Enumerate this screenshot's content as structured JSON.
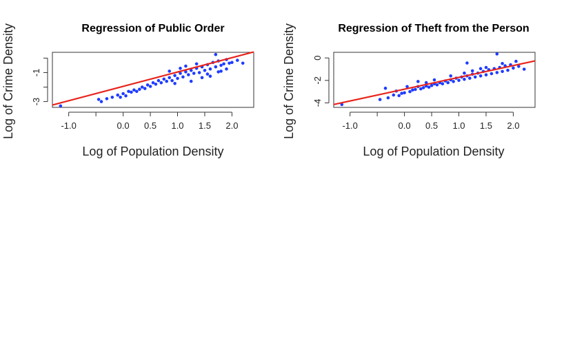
{
  "chart_data": [
    {
      "type": "scatter",
      "title": "Regression of Public Order",
      "xlabel": "Log of Population Density",
      "ylabel": "Log of Crime Density",
      "xlim": [
        -1.3,
        2.4
      ],
      "ylim": [
        -3.4,
        0.4
      ],
      "xticks": [
        -1.0,
        -0.5,
        0.0,
        0.5,
        1.0,
        1.5,
        2.0
      ],
      "xtick_labels": [
        "-1.0",
        "",
        "0.0",
        "0.5",
        "1.0",
        "1.5",
        "2.0"
      ],
      "yticks": [
        -3,
        -2,
        -1,
        0
      ],
      "ytick_labels": [
        "-3",
        "",
        "-1",
        ""
      ],
      "regression": {
        "intercept": -1.95,
        "slope": 0.99
      },
      "points": [
        [
          -1.15,
          -3.3
        ],
        [
          -0.45,
          -2.85
        ],
        [
          -0.4,
          -3.0
        ],
        [
          -0.3,
          -2.8
        ],
        [
          -0.2,
          -2.7
        ],
        [
          -0.1,
          -2.55
        ],
        [
          -0.05,
          -2.7
        ],
        [
          0.0,
          -2.45
        ],
        [
          0.05,
          -2.6
        ],
        [
          0.1,
          -2.3
        ],
        [
          0.15,
          -2.35
        ],
        [
          0.2,
          -2.2
        ],
        [
          0.25,
          -2.3
        ],
        [
          0.3,
          -2.15
        ],
        [
          0.35,
          -2.0
        ],
        [
          0.4,
          -2.1
        ],
        [
          0.45,
          -1.85
        ],
        [
          0.5,
          -1.95
        ],
        [
          0.55,
          -1.7
        ],
        [
          0.6,
          -1.8
        ],
        [
          0.65,
          -1.55
        ],
        [
          0.7,
          -1.7
        ],
        [
          0.75,
          -1.45
        ],
        [
          0.8,
          -1.6
        ],
        [
          0.85,
          -1.35
        ],
        [
          0.9,
          -1.55
        ],
        [
          0.95,
          -1.2
        ],
        [
          1.0,
          -1.4
        ],
        [
          1.05,
          -1.05
        ],
        [
          1.1,
          -1.3
        ],
        [
          1.15,
          -0.95
        ],
        [
          1.2,
          -1.15
        ],
        [
          1.25,
          -0.85
        ],
        [
          1.3,
          -1.05
        ],
        [
          1.35,
          -0.7
        ],
        [
          1.4,
          -1.0
        ],
        [
          1.45,
          -0.6
        ],
        [
          1.5,
          -0.85
        ],
        [
          1.55,
          -0.45
        ],
        [
          1.6,
          -0.75
        ],
        [
          1.65,
          -0.3
        ],
        [
          1.7,
          -0.6
        ],
        [
          1.75,
          -0.2
        ],
        [
          1.8,
          -0.5
        ],
        [
          1.85,
          -0.4
        ],
        [
          1.9,
          -0.1
        ],
        [
          1.95,
          -0.35
        ],
        [
          2.0,
          -0.3
        ],
        [
          2.1,
          -0.15
        ],
        [
          2.2,
          -0.35
        ],
        [
          1.7,
          0.25
        ],
        [
          1.25,
          -1.6
        ],
        [
          1.45,
          -1.35
        ],
        [
          0.95,
          -1.75
        ],
        [
          1.55,
          -1.1
        ],
        [
          1.6,
          -1.25
        ],
        [
          1.8,
          -0.9
        ],
        [
          1.9,
          -0.75
        ],
        [
          1.35,
          -0.4
        ],
        [
          1.15,
          -0.55
        ],
        [
          0.85,
          -0.9
        ],
        [
          1.05,
          -0.7
        ],
        [
          1.75,
          -0.95
        ]
      ]
    },
    {
      "type": "scatter",
      "title": "Regression of Theft from the Person",
      "xlabel": "Log of Population Density",
      "ylabel": "Log of Crime Density",
      "xlim": [
        -1.3,
        2.4
      ],
      "ylim": [
        -4.4,
        0.5
      ],
      "xticks": [
        -1.0,
        -0.5,
        0.0,
        0.5,
        1.0,
        1.5,
        2.0
      ],
      "xtick_labels": [
        "-1.0",
        "",
        "0.0",
        "0.5",
        "1.0",
        "1.5",
        "2.0"
      ],
      "yticks": [
        -4,
        -2,
        0
      ],
      "ytick_labels": [
        "-4",
        "-2",
        "0"
      ],
      "regression": {
        "intercept": -2.78,
        "slope": 1.05
      },
      "points": [
        [
          -1.15,
          -4.15
        ],
        [
          -0.45,
          -3.7
        ],
        [
          -0.35,
          -2.7
        ],
        [
          -0.3,
          -3.55
        ],
        [
          -0.2,
          -3.3
        ],
        [
          -0.1,
          -3.35
        ],
        [
          -0.05,
          -3.15
        ],
        [
          0.0,
          -3.1
        ],
        [
          0.05,
          -2.55
        ],
        [
          0.1,
          -3.0
        ],
        [
          0.15,
          -2.85
        ],
        [
          0.2,
          -2.8
        ],
        [
          0.25,
          -2.55
        ],
        [
          0.3,
          -2.75
        ],
        [
          0.35,
          -2.65
        ],
        [
          0.4,
          -2.5
        ],
        [
          0.45,
          -2.6
        ],
        [
          0.5,
          -2.45
        ],
        [
          0.55,
          -2.3
        ],
        [
          0.6,
          -2.4
        ],
        [
          0.65,
          -2.2
        ],
        [
          0.7,
          -2.3
        ],
        [
          0.75,
          -2.05
        ],
        [
          0.8,
          -2.2
        ],
        [
          0.85,
          -1.95
        ],
        [
          0.9,
          -2.1
        ],
        [
          0.95,
          -1.8
        ],
        [
          1.0,
          -2.0
        ],
        [
          1.05,
          -1.7
        ],
        [
          1.1,
          -1.9
        ],
        [
          1.15,
          -1.6
        ],
        [
          1.2,
          -1.8
        ],
        [
          1.25,
          -1.45
        ],
        [
          1.3,
          -1.7
        ],
        [
          1.35,
          -1.35
        ],
        [
          1.4,
          -1.6
        ],
        [
          1.45,
          -1.2
        ],
        [
          1.5,
          -1.5
        ],
        [
          1.55,
          -1.05
        ],
        [
          1.6,
          -1.4
        ],
        [
          1.65,
          -0.95
        ],
        [
          1.7,
          -1.3
        ],
        [
          1.75,
          -0.85
        ],
        [
          1.8,
          -1.2
        ],
        [
          1.85,
          -0.7
        ],
        [
          1.9,
          -1.1
        ],
        [
          1.95,
          -0.6
        ],
        [
          2.0,
          -0.9
        ],
        [
          2.1,
          -0.75
        ],
        [
          2.2,
          -1.0
        ],
        [
          1.7,
          0.35
        ],
        [
          1.15,
          -0.45
        ],
        [
          2.05,
          -0.3
        ],
        [
          0.25,
          -2.1
        ],
        [
          0.55,
          -1.95
        ],
        [
          0.85,
          -1.6
        ],
        [
          1.25,
          -1.15
        ],
        [
          1.5,
          -0.85
        ],
        [
          1.8,
          -0.5
        ],
        [
          1.4,
          -0.95
        ],
        [
          -0.15,
          -2.95
        ],
        [
          0.4,
          -2.2
        ],
        [
          1.1,
          -1.35
        ]
      ]
    }
  ]
}
